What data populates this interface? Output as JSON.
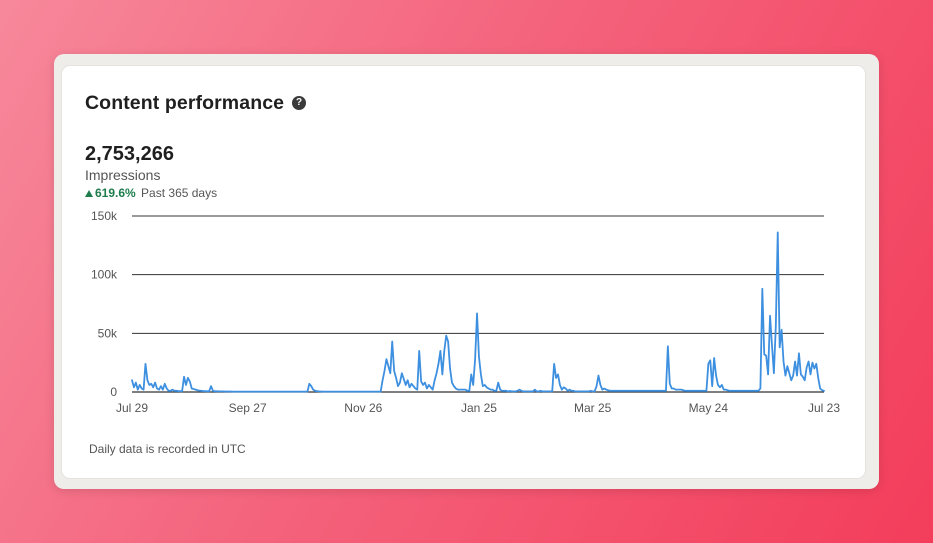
{
  "card": {
    "title": "Content performance",
    "help_icon": "question-circle-icon",
    "metric_value": "2,753,266",
    "metric_label": "Impressions",
    "change_value": "619.6%",
    "change_period": "Past 365 days",
    "footnote": "Daily data is recorded in UTC"
  },
  "colors": {
    "line": "#3d8fe0",
    "positive": "#1e7c4d",
    "gridline": "#333333"
  },
  "chart_data": {
    "type": "line",
    "title": "",
    "xlabel": "",
    "ylabel": "",
    "ylim": [
      0,
      150000
    ],
    "yticks": [
      0,
      50000,
      100000,
      150000
    ],
    "ytick_labels": [
      "0",
      "50k",
      "100k",
      "150k"
    ],
    "xtick_labels": [
      "Jul 29",
      "Sep 27",
      "Nov 26",
      "Jan 25",
      "Mar 25",
      "May 24",
      "Jul 23"
    ],
    "xtick_days": [
      0,
      60,
      120,
      180,
      239,
      299,
      359
    ],
    "grid": true,
    "legend": "none",
    "series": [
      {
        "values": [
          10000,
          4000,
          8000,
          2000,
          6000,
          3000,
          2000,
          24000,
          10000,
          6000,
          7000,
          4000,
          8000,
          3000,
          2000,
          5000,
          2000,
          7000,
          3000,
          1000,
          1000,
          2000,
          1000,
          1000,
          800,
          700,
          600,
          13000,
          6000,
          12000,
          9000,
          3000,
          2500,
          2000,
          1500,
          1200,
          1000,
          800,
          700,
          600,
          600,
          5000,
          1000,
          700,
          600,
          500,
          500,
          500,
          400,
          400,
          400,
          400,
          300,
          300,
          300,
          300,
          300,
          300,
          300,
          300,
          300,
          300,
          300,
          300,
          300,
          300,
          300,
          300,
          300,
          300,
          300,
          300,
          300,
          300,
          300,
          300,
          300,
          300,
          300,
          300,
          300,
          300,
          300,
          300,
          300,
          300,
          300,
          300,
          300,
          300,
          300,
          300,
          7000,
          5000,
          2000,
          1000,
          700,
          500,
          400,
          300,
          300,
          300,
          300,
          300,
          300,
          300,
          300,
          300,
          300,
          300,
          300,
          300,
          300,
          300,
          300,
          300,
          300,
          300,
          300,
          300,
          300,
          300,
          300,
          300,
          300,
          300,
          300,
          300,
          300,
          300,
          10000,
          18000,
          28000,
          22000,
          16000,
          43000,
          18000,
          12000,
          5000,
          8000,
          16000,
          11000,
          6000,
          10000,
          4000,
          7000,
          5000,
          3000,
          2000,
          35000,
          9000,
          6000,
          8000,
          3000,
          6000,
          4000,
          2000,
          10000,
          16000,
          24000,
          35000,
          15000,
          35000,
          48000,
          43000,
          20000,
          8000,
          5000,
          3000,
          2000,
          2000,
          2000,
          2000,
          2000,
          1000,
          1000,
          15000,
          6000,
          28000,
          67000,
          30000,
          15000,
          5000,
          6000,
          4000,
          3000,
          2000,
          2000,
          1000,
          1000,
          8000,
          2000,
          1000,
          1000,
          1000,
          500,
          800,
          500,
          500,
          500,
          1000,
          2000,
          1000,
          500,
          500,
          500,
          500,
          500,
          500,
          2000,
          500,
          500,
          1000,
          500,
          500,
          500,
          500,
          500,
          500,
          24000,
          12000,
          15000,
          6000,
          2000,
          4000,
          3000,
          1000,
          2000,
          1000,
          1000,
          500,
          500,
          500,
          500,
          500,
          500,
          500,
          500,
          1000,
          500,
          500,
          5000,
          14000,
          6000,
          2000,
          3000,
          2000,
          1500,
          1000,
          1000,
          1000,
          1000,
          1000,
          1000,
          1000,
          1000,
          1000,
          1000,
          1000,
          1000,
          1000,
          1000,
          1000,
          1000,
          1000,
          1000,
          1000,
          1000,
          1000,
          1000,
          1000,
          1000,
          1000,
          1000,
          1000,
          1000,
          1000,
          1000,
          39000,
          7000,
          3000,
          3000,
          2000,
          2000,
          2000,
          2000,
          1500,
          1000,
          1000,
          1000,
          1000,
          1000,
          1000,
          1000,
          1000,
          1000,
          1000,
          1000,
          1000,
          24000,
          27000,
          5000,
          29000,
          14000,
          6000,
          4000,
          6000,
          2000,
          2000,
          1500,
          1000,
          1000,
          1000,
          1000,
          1000,
          1000,
          1000,
          1000,
          1000,
          1000,
          1000,
          1000,
          1000,
          1000,
          1000,
          1000,
          3000,
          88000,
          32000,
          31000,
          15000,
          65000,
          40000,
          16000,
          56000,
          136000,
          38000,
          53000,
          26000,
          14000,
          22000,
          16000,
          10000,
          14000,
          26000,
          14000,
          33000,
          15000,
          13000,
          10000,
          21000,
          26000,
          15000,
          25000,
          20000,
          24000,
          12000,
          3000,
          1500,
          1000
        ]
      }
    ]
  }
}
